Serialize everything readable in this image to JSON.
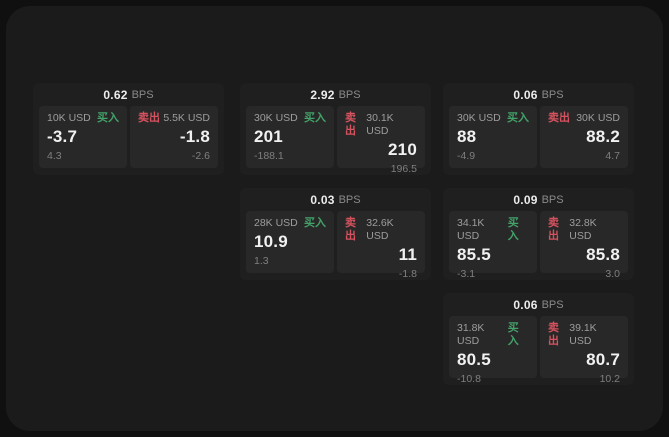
{
  "labels": {
    "bps_suffix": "BPS",
    "buy": "买入",
    "sell": "卖出"
  },
  "colors": {
    "buy_green": "#43a169",
    "sell_red": "#d5525e",
    "surface": "#1b1b1b",
    "card": "#1f1f1f",
    "panel": "#282828"
  },
  "cards": [
    {
      "bps": "0.62",
      "buy": {
        "amount": "10K USD",
        "main": "-3.7",
        "sub": "4.3"
      },
      "sell": {
        "amount": "5.5K USD",
        "main": "-1.8",
        "sub": "-2.6"
      }
    },
    {
      "bps": "2.92",
      "buy": {
        "amount": "30K USD",
        "main": "201",
        "sub": "-188.1"
      },
      "sell": {
        "amount": "30.1K USD",
        "main": "210",
        "sub": "196.5"
      }
    },
    {
      "bps": "0.06",
      "buy": {
        "amount": "30K USD",
        "main": "88",
        "sub": "-4.9"
      },
      "sell": {
        "amount": "30K USD",
        "main": "88.2",
        "sub": "4.7"
      }
    },
    {
      "bps": "0.03",
      "buy": {
        "amount": "28K USD",
        "main": "10.9",
        "sub": "1.3"
      },
      "sell": {
        "amount": "32.6K USD",
        "main": "11",
        "sub": "-1.8"
      }
    },
    {
      "bps": "0.09",
      "buy": {
        "amount": "34.1K USD",
        "main": "85.5",
        "sub": "-3.1"
      },
      "sell": {
        "amount": "32.8K USD",
        "main": "85.8",
        "sub": "3.0"
      }
    },
    {
      "bps": "0.06",
      "buy": {
        "amount": "31.8K USD",
        "main": "80.5",
        "sub": "-10.8"
      },
      "sell": {
        "amount": "39.1K USD",
        "main": "80.7",
        "sub": "10.2"
      }
    }
  ]
}
